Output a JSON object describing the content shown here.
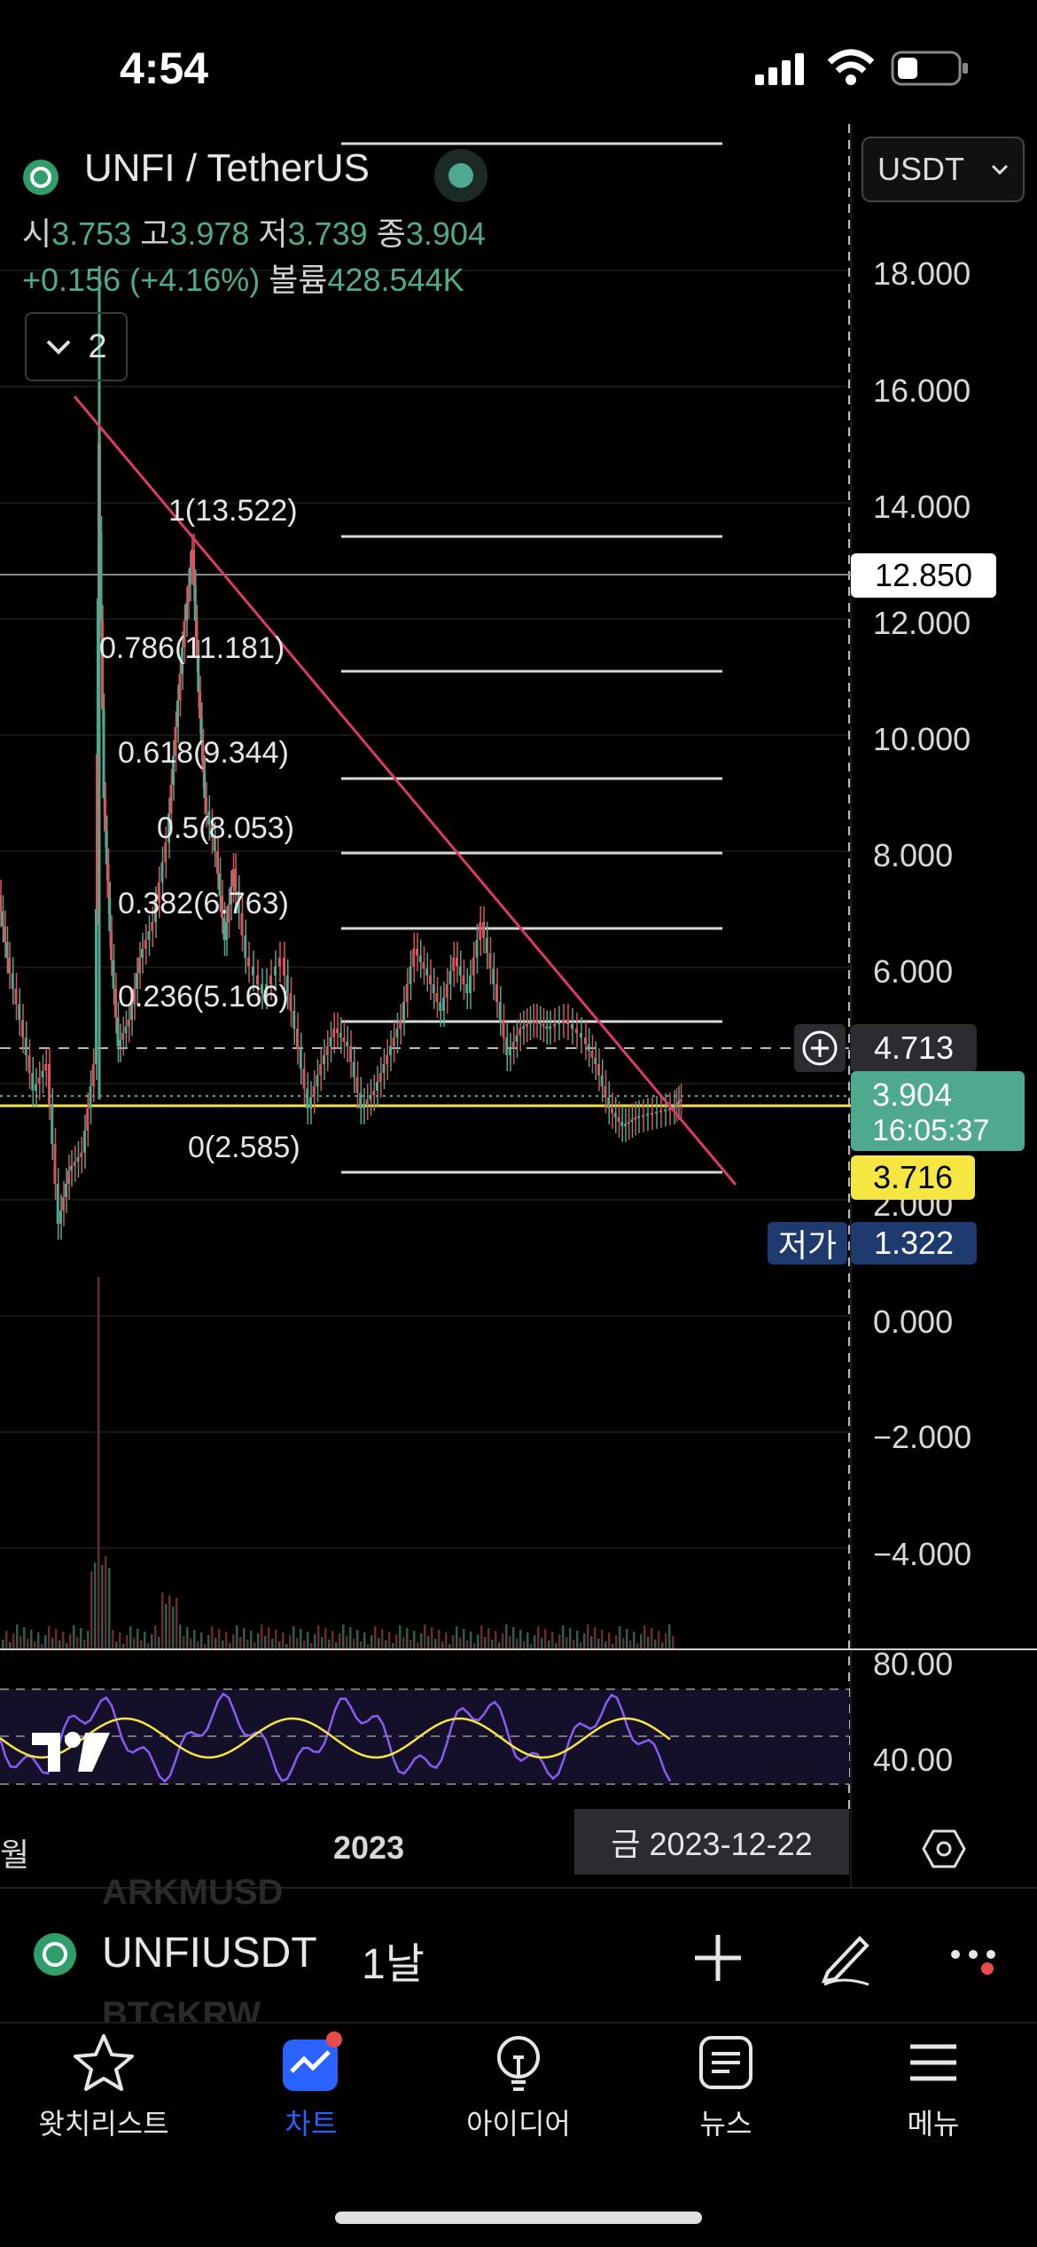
{
  "status": {
    "time": "4:54"
  },
  "header": {
    "symbol_title": "UNFI / TetherUS",
    "ohlc": {
      "open_label": "시",
      "open": "3.753",
      "high_label": "고",
      "high": "3.978",
      "low_label": "저",
      "low": "3.739",
      "close_label": "종",
      "close": "3.904"
    },
    "change": "+0.156 (+4.16%)",
    "volume_label": "볼륨",
    "volume": "428.544K",
    "collapse_count": "2",
    "currency": "USDT"
  },
  "price_axis": {
    "ticks": [
      "18.000",
      "16.000",
      "14.000",
      "12.000",
      "10.000",
      "8.000",
      "6.000",
      "2.000",
      "0.000",
      "−2.000",
      "−4.000"
    ],
    "rsi_ticks": [
      "80.00",
      "40.00"
    ]
  },
  "fibonacci": [
    {
      "label": "1(13.522)"
    },
    {
      "label": "0.786(11.181)"
    },
    {
      "label": "0.618(9.344)"
    },
    {
      "label": "0.5(8.053)"
    },
    {
      "label": "0.382(6.763)"
    },
    {
      "label": "0.236(5.166)"
    },
    {
      "label": "0(2.585)"
    }
  ],
  "tags": {
    "horizontal_line": "12.850",
    "crosshair_price": "4.713",
    "last_price": "3.904",
    "countdown": "16:05:37",
    "yellow_line": "3.716",
    "low_label": "저가",
    "low_value": "1.322"
  },
  "x_axis": {
    "left_partial": "월",
    "year": "2023",
    "crosshair_date": "금 2023-12-22"
  },
  "toolbar": {
    "ticker": "UNFIUSDT",
    "interval": "1날",
    "ghost_top": "ARKMUSD",
    "ghost_bottom": "BTGKRW"
  },
  "nav": [
    {
      "label": "왓치리스트",
      "icon": "star-icon"
    },
    {
      "label": "차트",
      "icon": "chart-icon",
      "active": true
    },
    {
      "label": "아이디어",
      "icon": "lightbulb-icon"
    },
    {
      "label": "뉴스",
      "icon": "news-icon"
    },
    {
      "label": "메뉴",
      "icon": "menu-icon"
    }
  ],
  "colors": {
    "up": "#4fa98f",
    "down": "#e0525a",
    "trendline": "#e0386a",
    "yellow": "#f5e642",
    "rsi": "#8a5cf6",
    "accent": "#2962ff"
  }
}
